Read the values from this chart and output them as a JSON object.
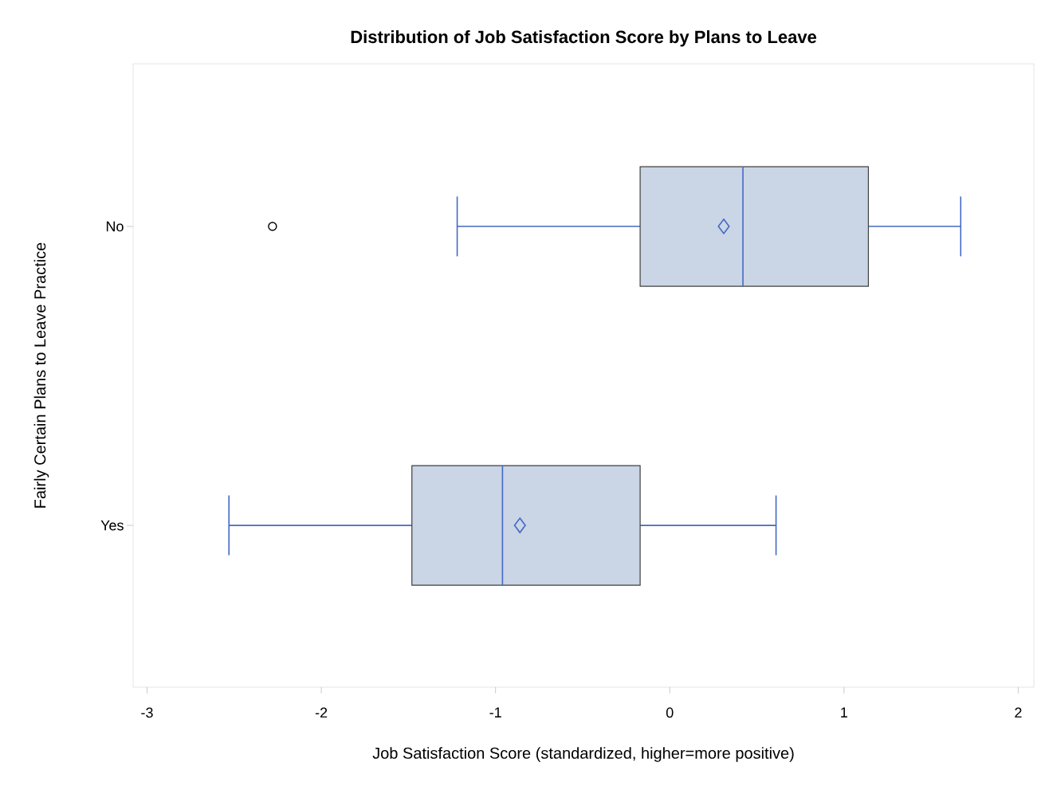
{
  "chart_data": {
    "type": "box",
    "title": "Distribution of Job Satisfaction Score by Plans to Leave",
    "xlabel": "Job Satisfaction Score (standardized, higher=more positive)",
    "ylabel": "Fairly Certain Plans to Leave Practice",
    "orientation": "horizontal",
    "color": "#cad5e5",
    "categories": [
      "No",
      "Yes"
    ],
    "boxes": [
      {
        "low": -1.22,
        "q1": -0.17,
        "median": 0.42,
        "q3": 1.14,
        "high": 1.67,
        "mean": 0.31,
        "outliers": [
          -2.28
        ]
      },
      {
        "low": -2.53,
        "q1": -1.48,
        "median": -0.96,
        "q3": -0.17,
        "high": 0.61,
        "mean": -0.86
      }
    ],
    "xlim": [
      -3.08,
      2.09
    ],
    "xticks": [
      -3,
      -2,
      -1,
      0,
      1,
      2
    ],
    "grid": false
  }
}
